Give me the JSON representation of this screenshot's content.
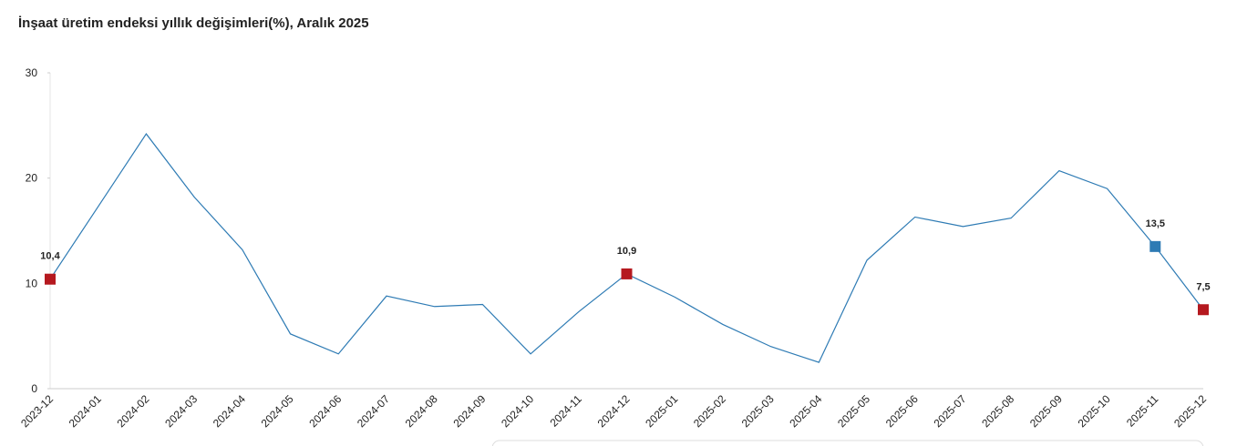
{
  "chart_data": {
    "type": "line",
    "title": "İnşaat üretim endeksi yıllık değişimleri(%), Aralık 2025",
    "categories": [
      "2023-12",
      "2024-01",
      "2024-02",
      "2024-03",
      "2024-04",
      "2024-05",
      "2024-06",
      "2024-07",
      "2024-08",
      "2024-09",
      "2024-10",
      "2024-11",
      "2024-12",
      "2025-01",
      "2025-02",
      "2025-03",
      "2025-04",
      "2025-05",
      "2025-06",
      "2025-07",
      "2025-08",
      "2025-09",
      "2025-10",
      "2025-11",
      "2025-12"
    ],
    "series": [
      {
        "color": "#2e7bb4",
        "values": [
          10.4,
          17.3,
          24.2,
          18.2,
          13.2,
          5.2,
          3.3,
          8.8,
          7.8,
          8.0,
          3.3,
          7.3,
          10.9,
          8.7,
          6.1,
          4.0,
          2.5,
          12.2,
          16.3,
          15.4,
          16.2,
          20.7,
          19.0,
          13.5,
          7.5
        ],
        "value_labels": [
          "10,4",
          null,
          null,
          null,
          null,
          null,
          null,
          null,
          null,
          null,
          null,
          null,
          "10,9",
          null,
          null,
          null,
          null,
          null,
          null,
          null,
          null,
          null,
          null,
          "13,5",
          "7,5"
        ],
        "marker_colors": [
          "#b5191f",
          null,
          null,
          null,
          null,
          null,
          null,
          null,
          null,
          null,
          null,
          null,
          "#b5191f",
          null,
          null,
          null,
          null,
          null,
          null,
          null,
          null,
          null,
          null,
          "#2e7bb4",
          "#b5191f"
        ]
      }
    ],
    "ylim": [
      0,
      30
    ],
    "yticks": [
      0,
      10,
      20,
      30
    ],
    "grid": false
  }
}
